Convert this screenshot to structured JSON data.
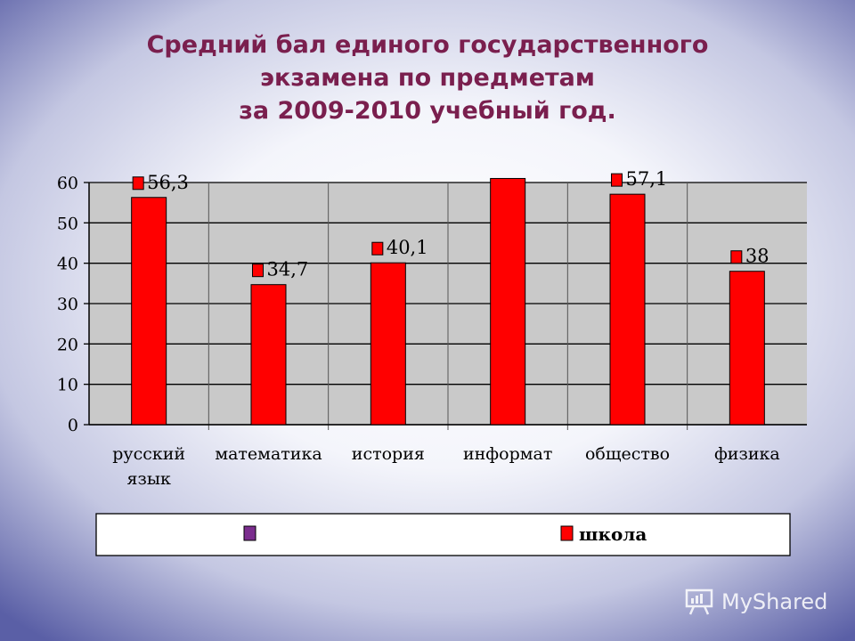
{
  "title_lines": [
    "Средний бал единого государственного",
    "экзамена по предметам",
    "за 2009-2010 учебный год."
  ],
  "chart_data": {
    "type": "bar",
    "categories": [
      "русский язык",
      "математика",
      "история",
      "информат",
      "общество",
      "физика"
    ],
    "category_lines": [
      [
        "русский",
        "язык"
      ],
      [
        "математика"
      ],
      [
        "история"
      ],
      [
        "информат"
      ],
      [
        "общество"
      ],
      [
        "физика"
      ]
    ],
    "series": [
      {
        "name": "",
        "color": "#7b2d8e",
        "values": [
          null,
          null,
          null,
          null,
          null,
          null
        ]
      },
      {
        "name": "школа",
        "color": "#ff0000",
        "values": [
          56.3,
          34.7,
          40.1,
          61,
          57.1,
          38
        ]
      }
    ],
    "data_labels": [
      "56,3",
      "34,7",
      "40,1",
      "",
      "57,1",
      "38"
    ],
    "ylim": [
      0,
      60
    ],
    "yticks": [
      0,
      10,
      20,
      30,
      40,
      50,
      60
    ],
    "grid": true,
    "plot_background": "#c9c9c9",
    "legend_position": "bottom"
  },
  "watermark": {
    "text": "MyShared",
    "icon": "presentation-board-icon"
  }
}
